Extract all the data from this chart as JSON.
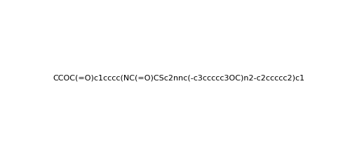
{
  "smiles": "CCOC(=O)c1cccc(NC(=O)CSc2nnc(-c3ccccc3OC)n2-c2ccccc2)c1",
  "title": "",
  "figsize": [
    5.09,
    2.23
  ],
  "dpi": 100,
  "background_color": "#ffffff"
}
